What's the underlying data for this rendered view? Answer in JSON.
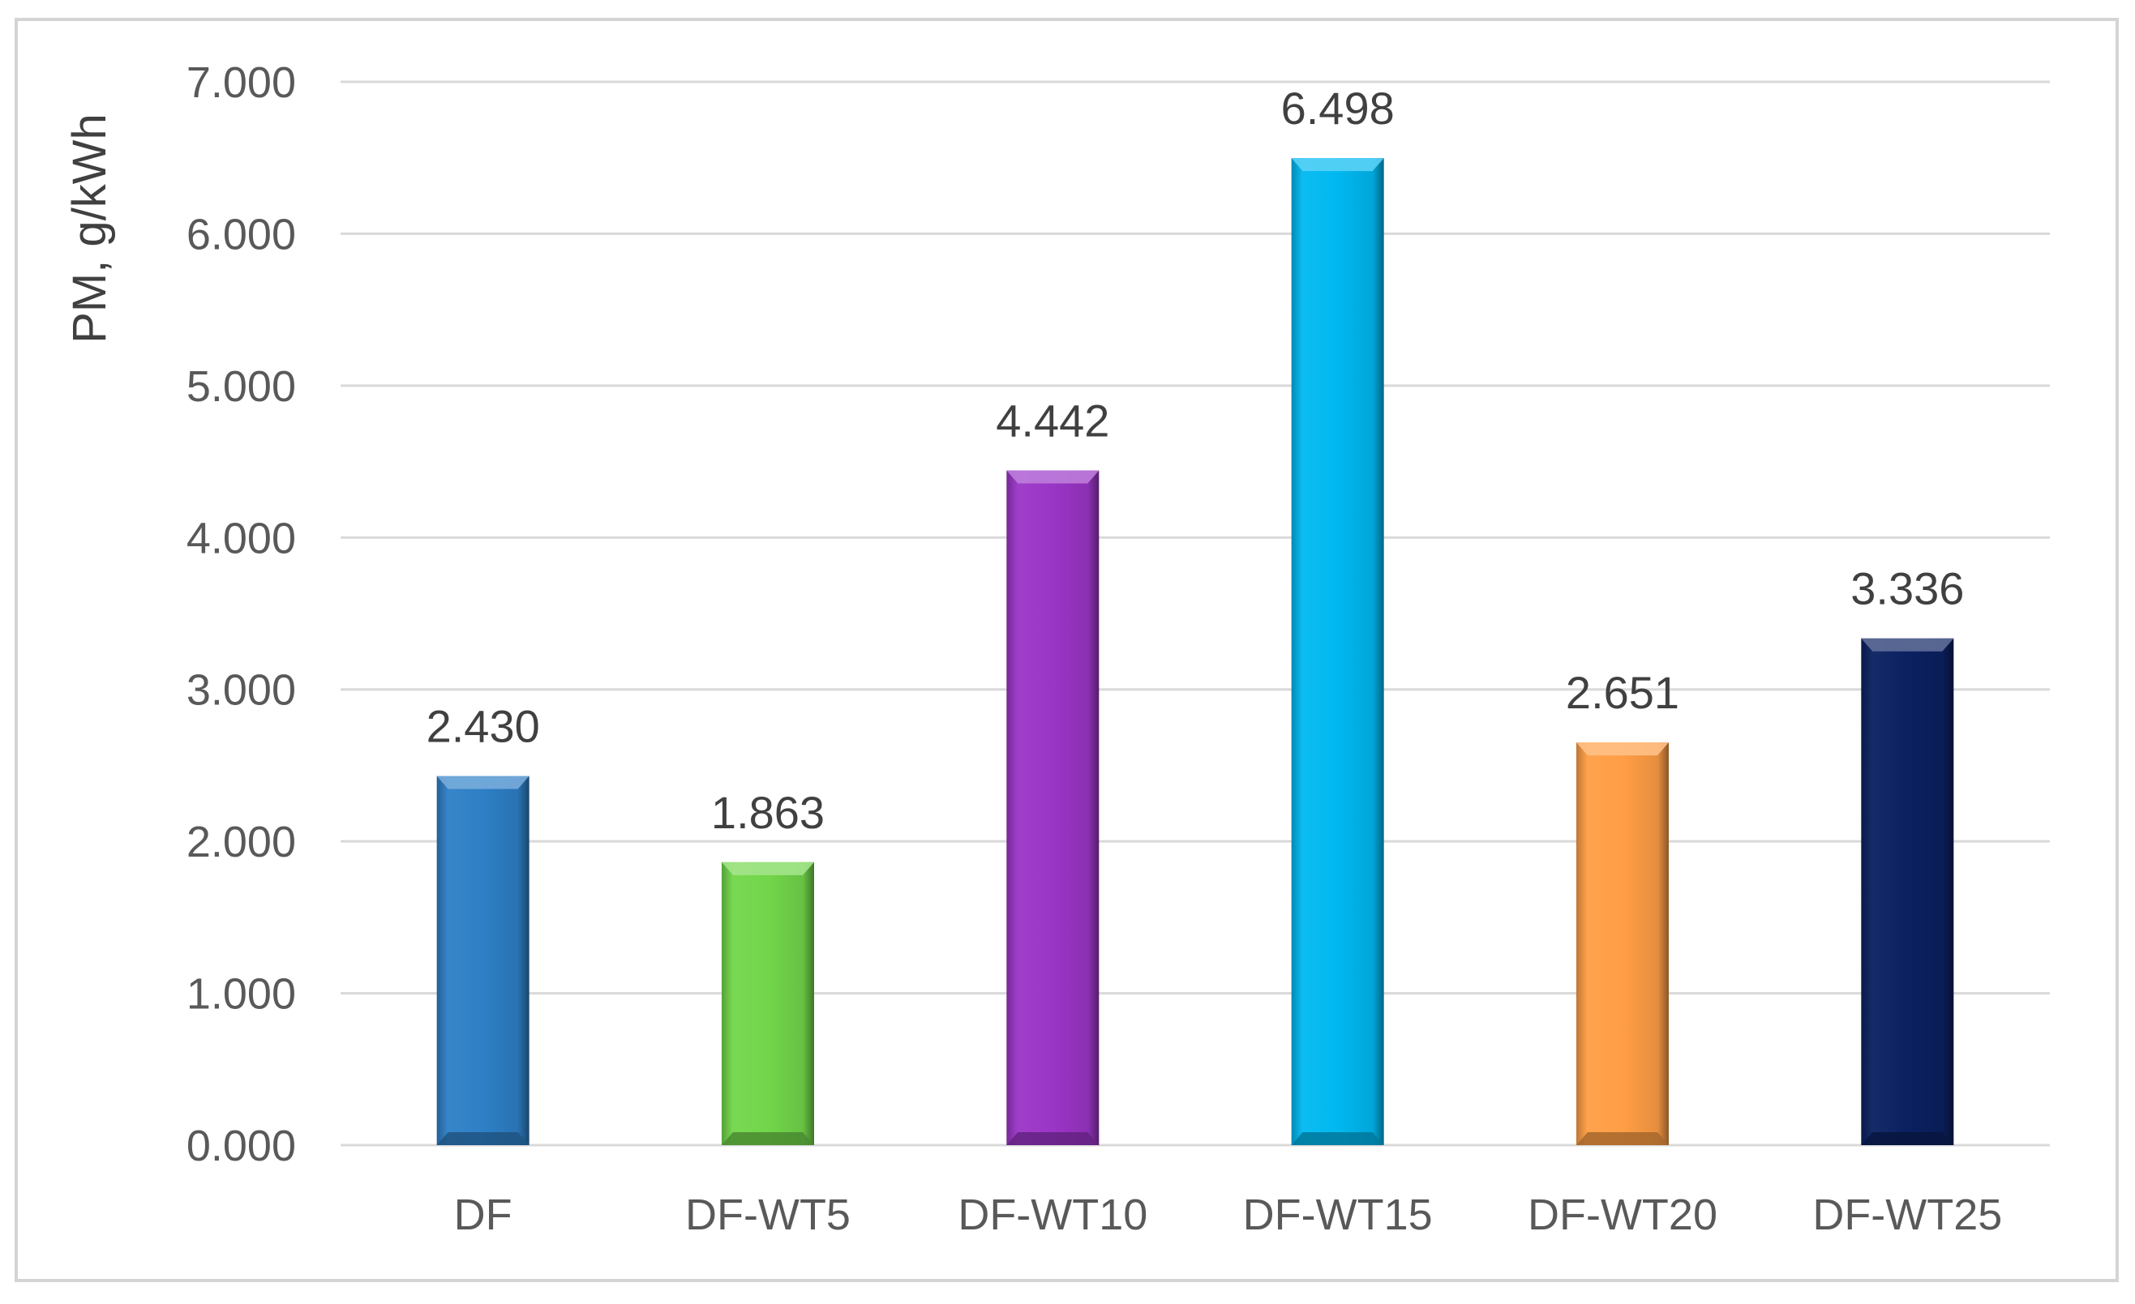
{
  "chart_data": {
    "type": "bar",
    "title": "",
    "xlabel": "",
    "ylabel": "PM, g/kWh",
    "ylim": [
      0,
      7
    ],
    "yticks": [
      "0.000",
      "1.000",
      "2.000",
      "3.000",
      "4.000",
      "5.000",
      "6.000",
      "7.000"
    ],
    "ytick_values": [
      0,
      1,
      2,
      3,
      4,
      5,
      6,
      7
    ],
    "categories": [
      "DF",
      "DF-WT5",
      "DF-WT10",
      "DF-WT15",
      "DF-WT20",
      "DF-WT25"
    ],
    "values": [
      2.43,
      1.863,
      4.442,
      6.498,
      2.651,
      3.336
    ],
    "data_labels": [
      "2.430",
      "1.863",
      "4.442",
      "6.498",
      "2.651",
      "3.336"
    ],
    "colors": [
      "#2e7fc6",
      "#72d64a",
      "#9a35c6",
      "#00b8f0",
      "#ff9e45",
      "#0a2060"
    ],
    "grid": true,
    "legend": "none"
  }
}
